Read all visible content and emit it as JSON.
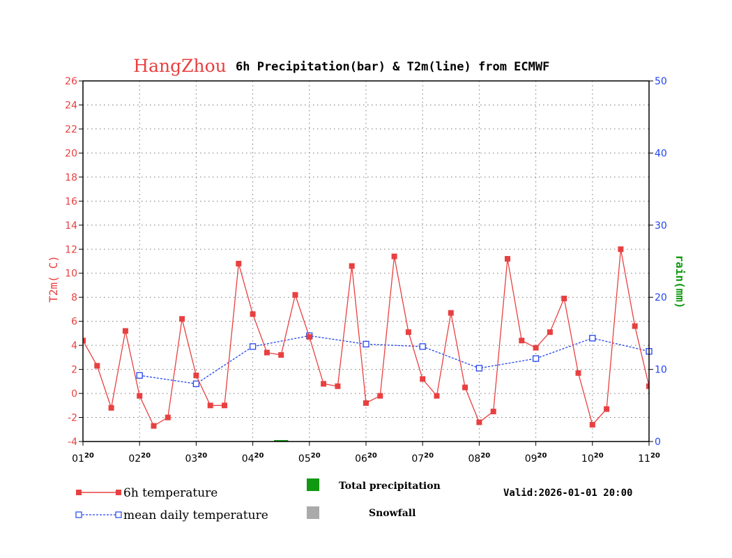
{
  "chart_data": {
    "type": "line",
    "title": {
      "city": "HangZhou",
      "text": "6h Precipitation(bar) & T2m(line) from ECMWF"
    },
    "ylabel_left": "T2m( C)",
    "ylabel_right": "rain(mm)",
    "ylim_left": [
      -4,
      26
    ],
    "ylim_right": [
      0,
      50
    ],
    "yticks_left": [
      "-4",
      "-2",
      "0",
      "2",
      "4",
      "6",
      "8",
      "10",
      "12",
      "14",
      "16",
      "18",
      "20",
      "22",
      "24",
      "26"
    ],
    "yticks_right": [
      "0",
      "10",
      "20",
      "30",
      "40",
      "50"
    ],
    "x_range": [
      0,
      10
    ],
    "x_ticks": [
      {
        "day": "01",
        "hour": "20"
      },
      {
        "day": "02",
        "hour": "20"
      },
      {
        "day": "03",
        "hour": "20"
      },
      {
        "day": "04",
        "hour": "20"
      },
      {
        "day": "05",
        "hour": "20"
      },
      {
        "day": "06",
        "hour": "20"
      },
      {
        "day": "07",
        "hour": "20"
      },
      {
        "day": "08",
        "hour": "20"
      },
      {
        "day": "09",
        "hour": "20"
      },
      {
        "day": "10",
        "hour": "20"
      },
      {
        "day": "11",
        "hour": "20"
      }
    ],
    "grid": true,
    "series": [
      {
        "name": "6h temperature",
        "color": "#e84040",
        "marker": "filled-square",
        "x": [
          0,
          0.25,
          0.5,
          0.75,
          1,
          1.25,
          1.5,
          1.75,
          2,
          2.25,
          2.5,
          2.75,
          3,
          3.25,
          3.5,
          3.75,
          4,
          4.25,
          4.5,
          4.75,
          5,
          5.25,
          5.5,
          5.75,
          6,
          6.25,
          6.5,
          6.75,
          7,
          7.25,
          7.5,
          7.75,
          8,
          8.25,
          8.5,
          8.75,
          9,
          9.25,
          9.5,
          9.75,
          10
        ],
        "values": [
          4.4,
          2.3,
          -1.2,
          5.2,
          -0.2,
          -2.7,
          -2.0,
          6.2,
          1.5,
          -1.0,
          -1.0,
          10.8,
          6.6,
          3.4,
          3.2,
          8.2,
          4.7,
          0.8,
          0.6,
          10.6,
          -0.8,
          -0.2,
          11.4,
          5.1,
          1.2,
          -0.2,
          6.7,
          0.5,
          -2.4,
          -1.5,
          11.2,
          4.4,
          3.8,
          5.1,
          7.9,
          1.7,
          -2.6,
          -1.3,
          12.0,
          5.6,
          0.6
        ]
      },
      {
        "name": "mean daily temperature",
        "color": "#2244ee",
        "marker": "hollow-square",
        "dashed": true,
        "x": [
          1,
          2,
          3,
          4,
          5,
          6,
          7,
          8,
          9,
          10
        ],
        "values": [
          1.5,
          0.8,
          3.9,
          4.8,
          4.1,
          3.9,
          2.1,
          2.9,
          4.6,
          3.5
        ]
      }
    ],
    "precipitation": {
      "name": "Total precipitation",
      "color": "#119911",
      "x": [
        3.5
      ],
      "values": [
        0.2
      ]
    },
    "snowfall": {
      "name": "Snowfall",
      "color": "#aaaaaa"
    },
    "legend": {
      "temp6h": "6h temperature",
      "mean": "mean daily temperature",
      "precip": "Total precipitation",
      "snow": "Snowfall",
      "valid": "Valid:2026-01-01 20:00",
      "precip_color": "#119911",
      "snow_color": "#aaaaaa"
    }
  }
}
